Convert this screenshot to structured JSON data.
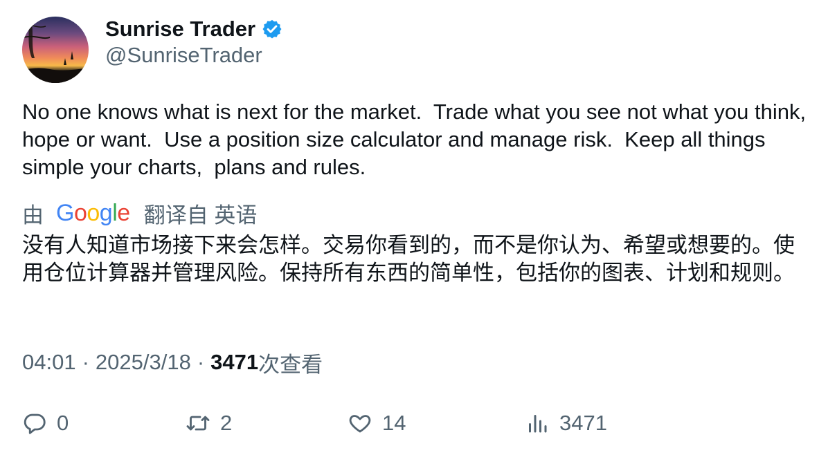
{
  "author": {
    "display_name": "Sunrise Trader",
    "handle": "@SunriseTrader",
    "verified": true,
    "avatar_icon": "sunset-landscape-avatar"
  },
  "tweet": {
    "text": "No one knows what is next for the market.  Trade what you see not what you think, hope or want.  Use a position size calculator and manage risk.  Keep all things simple your charts,  plans and rules."
  },
  "translation": {
    "prefix": "由",
    "provider_letters": [
      "G",
      "o",
      "o",
      "g",
      "l",
      "e"
    ],
    "suffix": "翻译自 英语",
    "text": "没有人知道市场接下来会怎样。交易你看到的，而不是你认为、希望或想要的。使用仓位计算器并管理风险。保持所有东西的简单性，包括你的图表、计划和规则。"
  },
  "meta": {
    "time": "04:01",
    "separator": "·",
    "date": "2025/3/18",
    "views_count": "3471",
    "views_label": "次查看"
  },
  "actions": {
    "replies": "0",
    "retweets": "2",
    "likes": "14",
    "views": "3471"
  },
  "colors": {
    "text_primary": "#0f1419",
    "text_secondary": "#536471",
    "verified_blue": "#1d9bf0"
  }
}
